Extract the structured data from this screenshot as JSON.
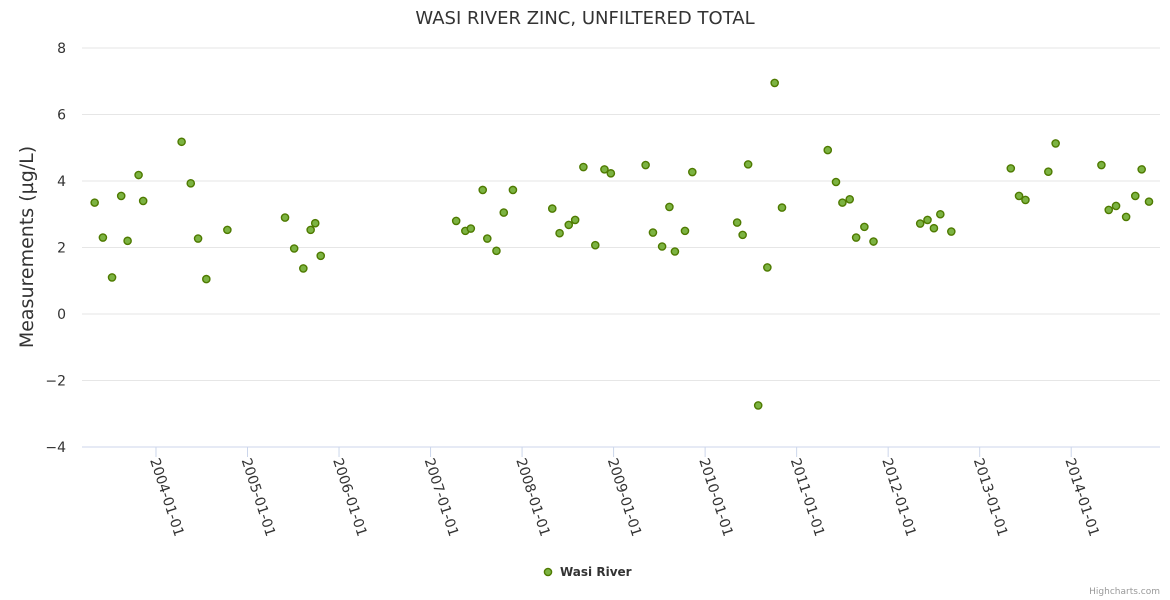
{
  "credits": "Highcharts.com",
  "colors": {
    "marker_fill": "#7cb342",
    "marker_stroke": "#4e7a00",
    "grid": "#e6e6e6",
    "axis": "#ccd6eb"
  },
  "chart_data": {
    "type": "scatter",
    "title": "WASI RIVER ZINC, UNFILTERED TOTAL",
    "xlabel": "",
    "ylabel": "Measurements (µg/L)",
    "ylim": [
      -4,
      8
    ],
    "yticks": [
      -4,
      -2,
      0,
      2,
      4,
      6,
      8
    ],
    "yticklabels": [
      "−4",
      "−2",
      "0",
      "2",
      "4",
      "6",
      "8"
    ],
    "xlim": [
      2003.29,
      2014.85
    ],
    "xticks": [
      2004,
      2005,
      2006,
      2007,
      2008,
      2009,
      2010,
      2011,
      2012,
      2013,
      2014
    ],
    "xticklabels": [
      "2004-01-01",
      "2005-01-01",
      "2006-01-01",
      "2007-01-01",
      "2008-01-01",
      "2009-01-01",
      "2010-01-01",
      "2011-01-01",
      "2012-01-01",
      "2013-01-01",
      "2014-01-01"
    ],
    "legend": "bottom-center",
    "series": [
      {
        "name": "Wasi River",
        "points": [
          [
            2003.33,
            3.35
          ],
          [
            2003.42,
            2.3
          ],
          [
            2003.52,
            1.1
          ],
          [
            2003.62,
            3.55
          ],
          [
            2003.69,
            2.2
          ],
          [
            2003.81,
            4.18
          ],
          [
            2003.86,
            3.4
          ],
          [
            2004.28,
            5.18
          ],
          [
            2004.38,
            3.93
          ],
          [
            2004.46,
            2.27
          ],
          [
            2004.55,
            1.05
          ],
          [
            2004.78,
            2.53
          ],
          [
            2005.41,
            2.9
          ],
          [
            2005.51,
            1.97
          ],
          [
            2005.61,
            1.37
          ],
          [
            2005.69,
            2.53
          ],
          [
            2005.74,
            2.73
          ],
          [
            2005.8,
            1.75
          ],
          [
            2007.28,
            2.8
          ],
          [
            2007.38,
            2.5
          ],
          [
            2007.44,
            2.57
          ],
          [
            2007.57,
            3.73
          ],
          [
            2007.62,
            2.27
          ],
          [
            2007.72,
            1.9
          ],
          [
            2007.8,
            3.05
          ],
          [
            2007.9,
            3.73
          ],
          [
            2008.33,
            3.17
          ],
          [
            2008.41,
            2.43
          ],
          [
            2008.51,
            2.68
          ],
          [
            2008.58,
            2.83
          ],
          [
            2008.67,
            4.42
          ],
          [
            2008.8,
            2.07
          ],
          [
            2008.9,
            4.35
          ],
          [
            2008.97,
            4.23
          ],
          [
            2009.35,
            4.48
          ],
          [
            2009.43,
            2.45
          ],
          [
            2009.53,
            2.03
          ],
          [
            2009.61,
            3.22
          ],
          [
            2009.67,
            1.88
          ],
          [
            2009.78,
            2.5
          ],
          [
            2009.86,
            4.27
          ],
          [
            2010.35,
            2.75
          ],
          [
            2010.41,
            2.38
          ],
          [
            2010.47,
            4.5
          ],
          [
            2010.58,
            -2.75
          ],
          [
            2010.68,
            1.4
          ],
          [
            2010.76,
            6.95
          ],
          [
            2010.84,
            3.2
          ],
          [
            2011.34,
            4.93
          ],
          [
            2011.43,
            3.97
          ],
          [
            2011.5,
            3.35
          ],
          [
            2011.58,
            3.45
          ],
          [
            2011.65,
            2.3
          ],
          [
            2011.74,
            2.62
          ],
          [
            2011.84,
            2.18
          ],
          [
            2012.35,
            2.72
          ],
          [
            2012.43,
            2.83
          ],
          [
            2012.5,
            2.58
          ],
          [
            2012.57,
            3.0
          ],
          [
            2012.69,
            2.48
          ],
          [
            2013.34,
            4.38
          ],
          [
            2013.43,
            3.55
          ],
          [
            2013.5,
            3.43
          ],
          [
            2013.75,
            4.28
          ],
          [
            2013.83,
            5.13
          ],
          [
            2014.33,
            4.48
          ],
          [
            2014.41,
            3.13
          ],
          [
            2014.49,
            3.25
          ],
          [
            2014.6,
            2.92
          ],
          [
            2014.7,
            3.55
          ],
          [
            2014.77,
            4.35
          ],
          [
            2014.85,
            3.38
          ]
        ]
      }
    ]
  }
}
